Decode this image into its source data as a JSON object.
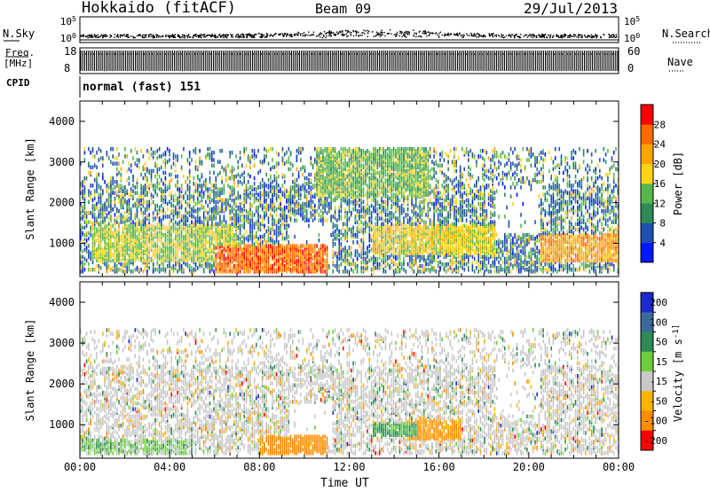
{
  "header": {
    "title": "Hokkaido (fitACF)",
    "beam": "Beam 09",
    "date": "29/Jul/2013"
  },
  "labels": {
    "nsky": "N.Sky",
    "nsearch": "N.Search",
    "freq": "Freq.",
    "freq_unit": "[MHz]",
    "nave": "Nave",
    "cpid": "CPID",
    "cpid_value": "normal (fast) 151",
    "xlabel": "Time UT"
  },
  "chart_data": [
    {
      "name": "noise-panel",
      "type": "scatter",
      "left_ticks": [
        "10^5",
        "10^0"
      ],
      "right_ticks": [
        "10^5",
        "10^0"
      ],
      "series": [
        {
          "name": "N.Sky",
          "style": "solid"
        },
        {
          "name": "N.Search",
          "style": "dotted"
        }
      ]
    },
    {
      "name": "frequency-panel",
      "type": "line",
      "left_ticks": [
        "18",
        "8"
      ],
      "right_ticks": [
        "60",
        "0"
      ],
      "ylim_left": [
        8,
        18
      ],
      "ylim_right": [
        0,
        60
      ],
      "series": [
        {
          "name": "Freq.",
          "style": "solid"
        },
        {
          "name": "Nave",
          "style": "dotted"
        }
      ]
    },
    {
      "name": "power-panel",
      "type": "heatmap",
      "ylabel": "Slant Range [km]",
      "yticks": [
        1000,
        2000,
        3000,
        4000
      ],
      "ylim": [
        180,
        4500
      ],
      "xticks": [
        "00:00",
        "04:00",
        "08:00",
        "12:00",
        "16:00",
        "20:00",
        "00:00"
      ],
      "xlim_hours": [
        0,
        24
      ],
      "colorbar": {
        "label": "Power [dB]",
        "ticks": [
          4,
          8,
          12,
          16,
          20,
          24,
          28
        ],
        "range": [
          0,
          32
        ],
        "colors": [
          "#0018ff",
          "#1f4fb0",
          "#2e8b57",
          "#56b84a",
          "#ffd21a",
          "#ffa400",
          "#ff6a00",
          "#ff0000"
        ]
      },
      "regions": [
        {
          "hours": [
            0,
            24
          ],
          "range_km": [
            250,
            3300
          ],
          "level_db": 8
        },
        {
          "hours": [
            0.5,
            7
          ],
          "range_km": [
            500,
            1400
          ],
          "level_db": 16
        },
        {
          "hours": [
            6,
            11
          ],
          "range_km": [
            250,
            900
          ],
          "level_db": 26
        },
        {
          "hours": [
            10.5,
            15.5
          ],
          "range_km": [
            2100,
            3300
          ],
          "level_db": 14
        },
        {
          "hours": [
            13,
            18.5
          ],
          "range_km": [
            700,
            1400
          ],
          "level_db": 18
        },
        {
          "hours": [
            20.5,
            24
          ],
          "range_km": [
            500,
            1200
          ],
          "level_db": 22
        }
      ]
    },
    {
      "name": "velocity-panel",
      "type": "heatmap",
      "ylabel": "Slant Range [km]",
      "yticks": [
        1000,
        2000,
        3000,
        4000
      ],
      "ylim": [
        180,
        4500
      ],
      "xticks": [
        "00:00",
        "04:00",
        "08:00",
        "12:00",
        "16:00",
        "20:00",
        "00:00"
      ],
      "xlim_hours": [
        0,
        24
      ],
      "colorbar": {
        "label": "Velocity [m s^-1]",
        "ticks": [
          "200",
          "100",
          "50",
          "15",
          "-15",
          "-50",
          "-100",
          "-200"
        ],
        "colors": [
          "#1a2ad0",
          "#3a6a9a",
          "#2e8b57",
          "#6ccf3a",
          "#c8c8c8",
          "#ffb300",
          "#ff8c00",
          "#ff0000"
        ]
      },
      "regions": [
        {
          "hours": [
            0,
            24
          ],
          "range_km": [
            250,
            3300
          ],
          "velocity": 0
        },
        {
          "hours": [
            8,
            11
          ],
          "range_km": [
            250,
            700
          ],
          "velocity": -80
        },
        {
          "hours": [
            14.5,
            17
          ],
          "range_km": [
            600,
            1100
          ],
          "velocity": -60
        },
        {
          "hours": [
            13,
            15
          ],
          "range_km": [
            700,
            1000
          ],
          "velocity": 40
        },
        {
          "hours": [
            0,
            5
          ],
          "range_km": [
            250,
            600
          ],
          "velocity": 20
        }
      ]
    }
  ]
}
